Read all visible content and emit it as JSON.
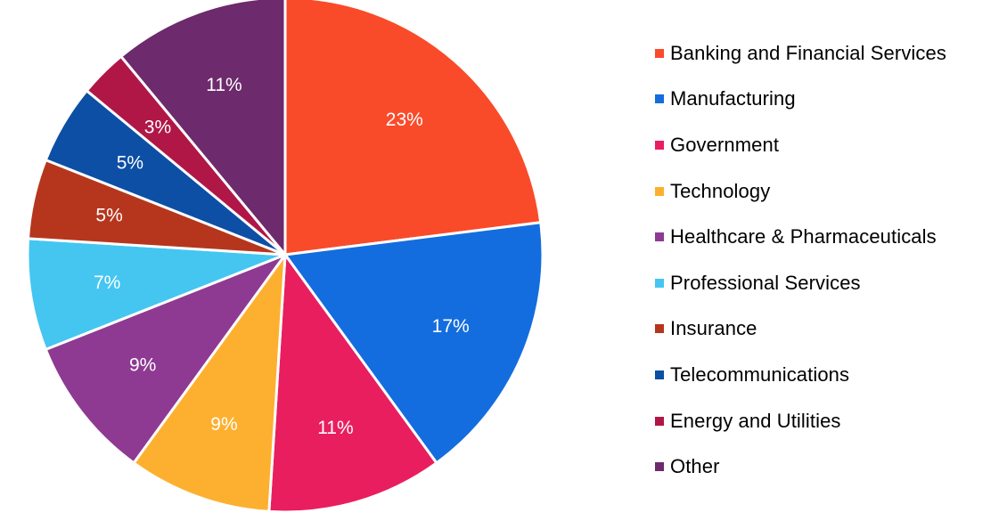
{
  "chart_data": {
    "type": "pie",
    "title": "",
    "legend_position": "right",
    "start_angle_deg": 0,
    "direction": "clockwise",
    "slices": [
      {
        "name": "Banking and Financial Services",
        "value": 23,
        "label": "23%",
        "color": "#F94B2A"
      },
      {
        "name": "Manufacturing",
        "value": 17,
        "label": "17%",
        "color": "#146DDE"
      },
      {
        "name": "Government",
        "value": 11,
        "label": "11%",
        "color": "#E91E5F"
      },
      {
        "name": "Technology",
        "value": 9,
        "label": "9%",
        "color": "#FDB02F"
      },
      {
        "name": "Healthcare & Pharmaceuticals",
        "value": 9,
        "label": "9%",
        "color": "#8E3A92"
      },
      {
        "name": "Professional Services",
        "value": 7,
        "label": "7%",
        "color": "#44C6F1"
      },
      {
        "name": "Insurance",
        "value": 5,
        "label": "5%",
        "color": "#B6361D"
      },
      {
        "name": "Telecommunications",
        "value": 5,
        "label": "5%",
        "color": "#0C4FA5"
      },
      {
        "name": "Energy and Utilities",
        "value": 3,
        "label": "3%",
        "color": "#B01747"
      },
      {
        "name": "Other",
        "value": 11,
        "label": "11%",
        "color": "#6D2A6C"
      }
    ]
  }
}
